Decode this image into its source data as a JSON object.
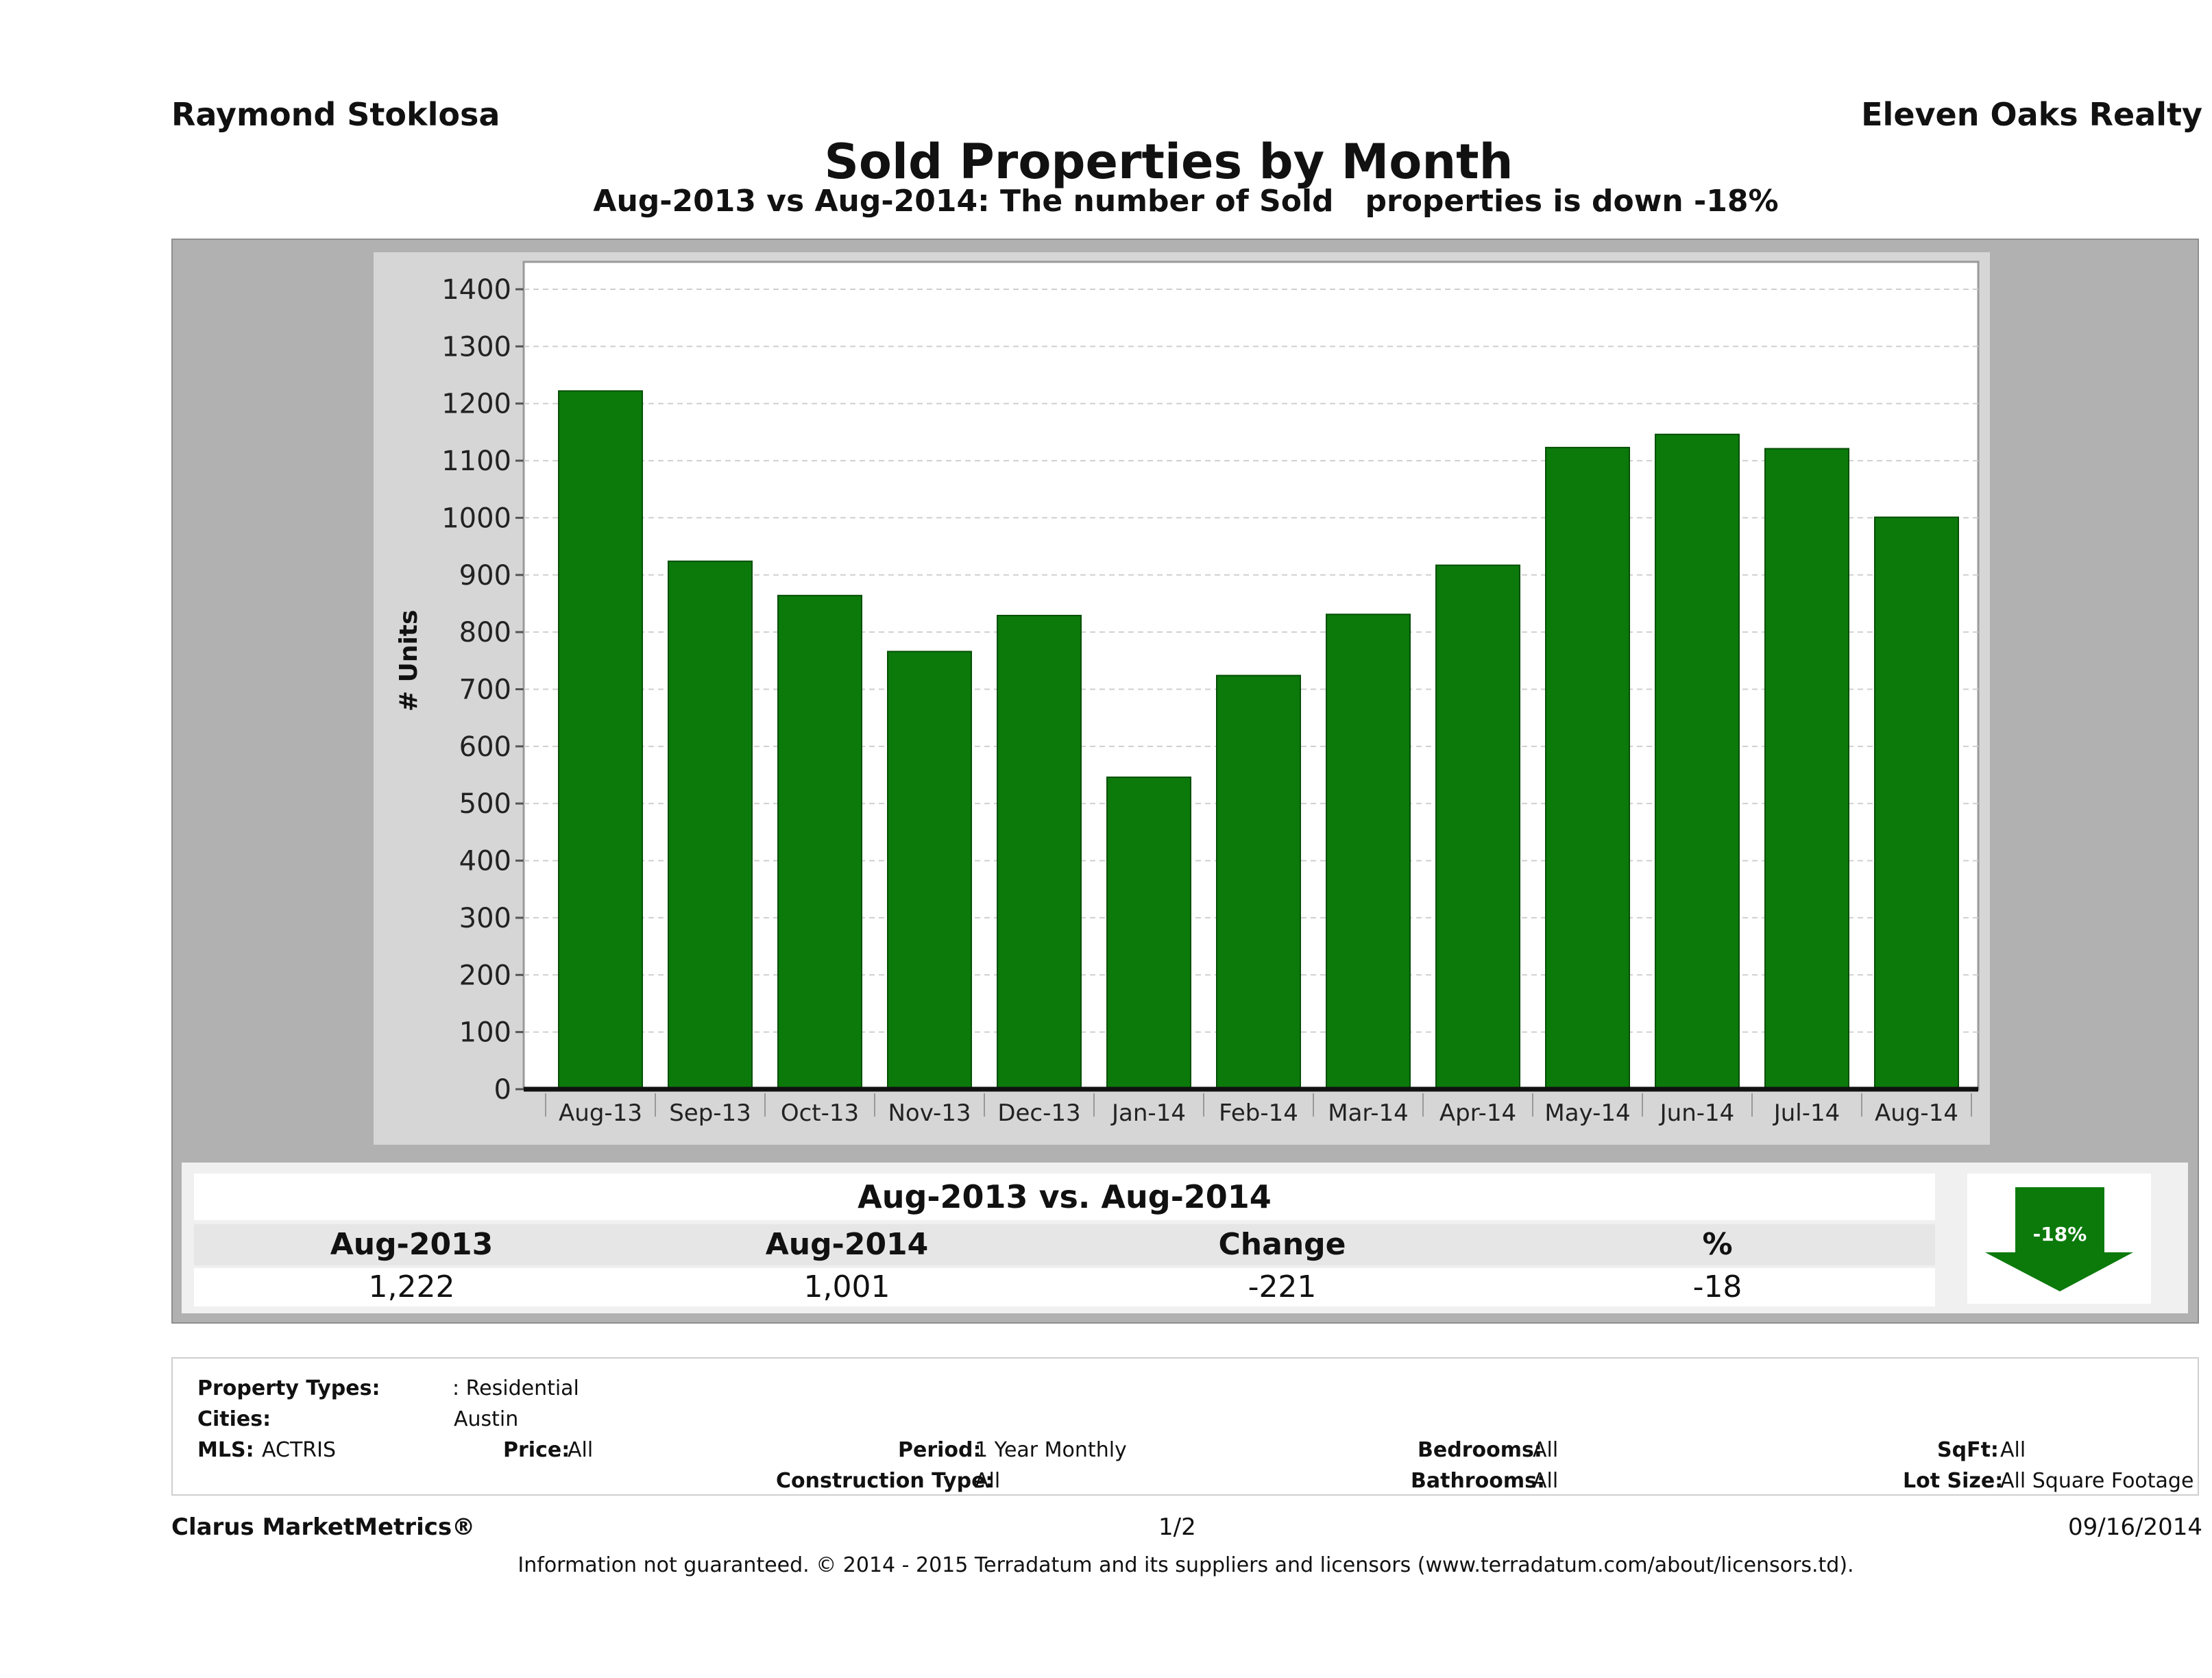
{
  "header": {
    "agent": "Raymond Stoklosa",
    "brokerage": "Eleven Oaks Realty",
    "title": "Sold Properties by Month",
    "subtitle": "Aug-2013 vs Aug-2014: The number of Sold   properties is down -18%"
  },
  "chart_data": {
    "type": "bar",
    "categories": [
      "Aug-13",
      "Sep-13",
      "Oct-13",
      "Nov-13",
      "Dec-13",
      "Jan-14",
      "Feb-14",
      "Mar-14",
      "Apr-14",
      "May-14",
      "Jun-14",
      "Jul-14",
      "Aug-14"
    ],
    "values": [
      1222,
      924,
      864,
      766,
      829,
      546,
      724,
      831,
      917,
      1123,
      1146,
      1121,
      1001
    ],
    "title": "Sold Properties by Month",
    "xlabel": "",
    "ylabel": "# Units",
    "ylim": [
      0,
      1450
    ],
    "yticks": [
      0,
      100,
      200,
      300,
      400,
      500,
      600,
      700,
      800,
      900,
      1000,
      1100,
      1200,
      1300,
      1400
    ],
    "grid": true,
    "bar_color": "#0b7a0b"
  },
  "summary": {
    "heading": "Aug-2013 vs. Aug-2014",
    "labels": [
      "Aug-2013",
      "Aug-2014",
      "Change",
      "%"
    ],
    "values": [
      "1,222",
      "1,001",
      "-221",
      "-18"
    ],
    "badge": "-18%",
    "badge_color": "#0b7a0b"
  },
  "filters": {
    "property_types_label": "Property Types:",
    "property_types_value": ": Residential",
    "cities_label": "Cities:",
    "cities_value": "Austin",
    "mls_label": "MLS:",
    "mls_value": "ACTRIS",
    "price_label": "Price:",
    "price_value": "All",
    "period_label": "Period:",
    "period_value": "1 Year Monthly",
    "construction_label": "Construction Type:",
    "construction_value": "All",
    "bedrooms_label": "Bedrooms:",
    "bedrooms_value": "All",
    "bathrooms_label": "Bathrooms:",
    "bathrooms_value": "All",
    "sqft_label": "SqFt:",
    "sqft_value": "All",
    "lot_label": "Lot Size:",
    "lot_value": "All Square Footage"
  },
  "footer": {
    "brand": "Clarus MarketMetrics®",
    "page": "1/2",
    "date": "09/16/2014",
    "disclaimer": "Information not guaranteed. © 2014 - 2015 Terradatum and its suppliers and licensors (www.terradatum.com/about/licensors.td)."
  }
}
